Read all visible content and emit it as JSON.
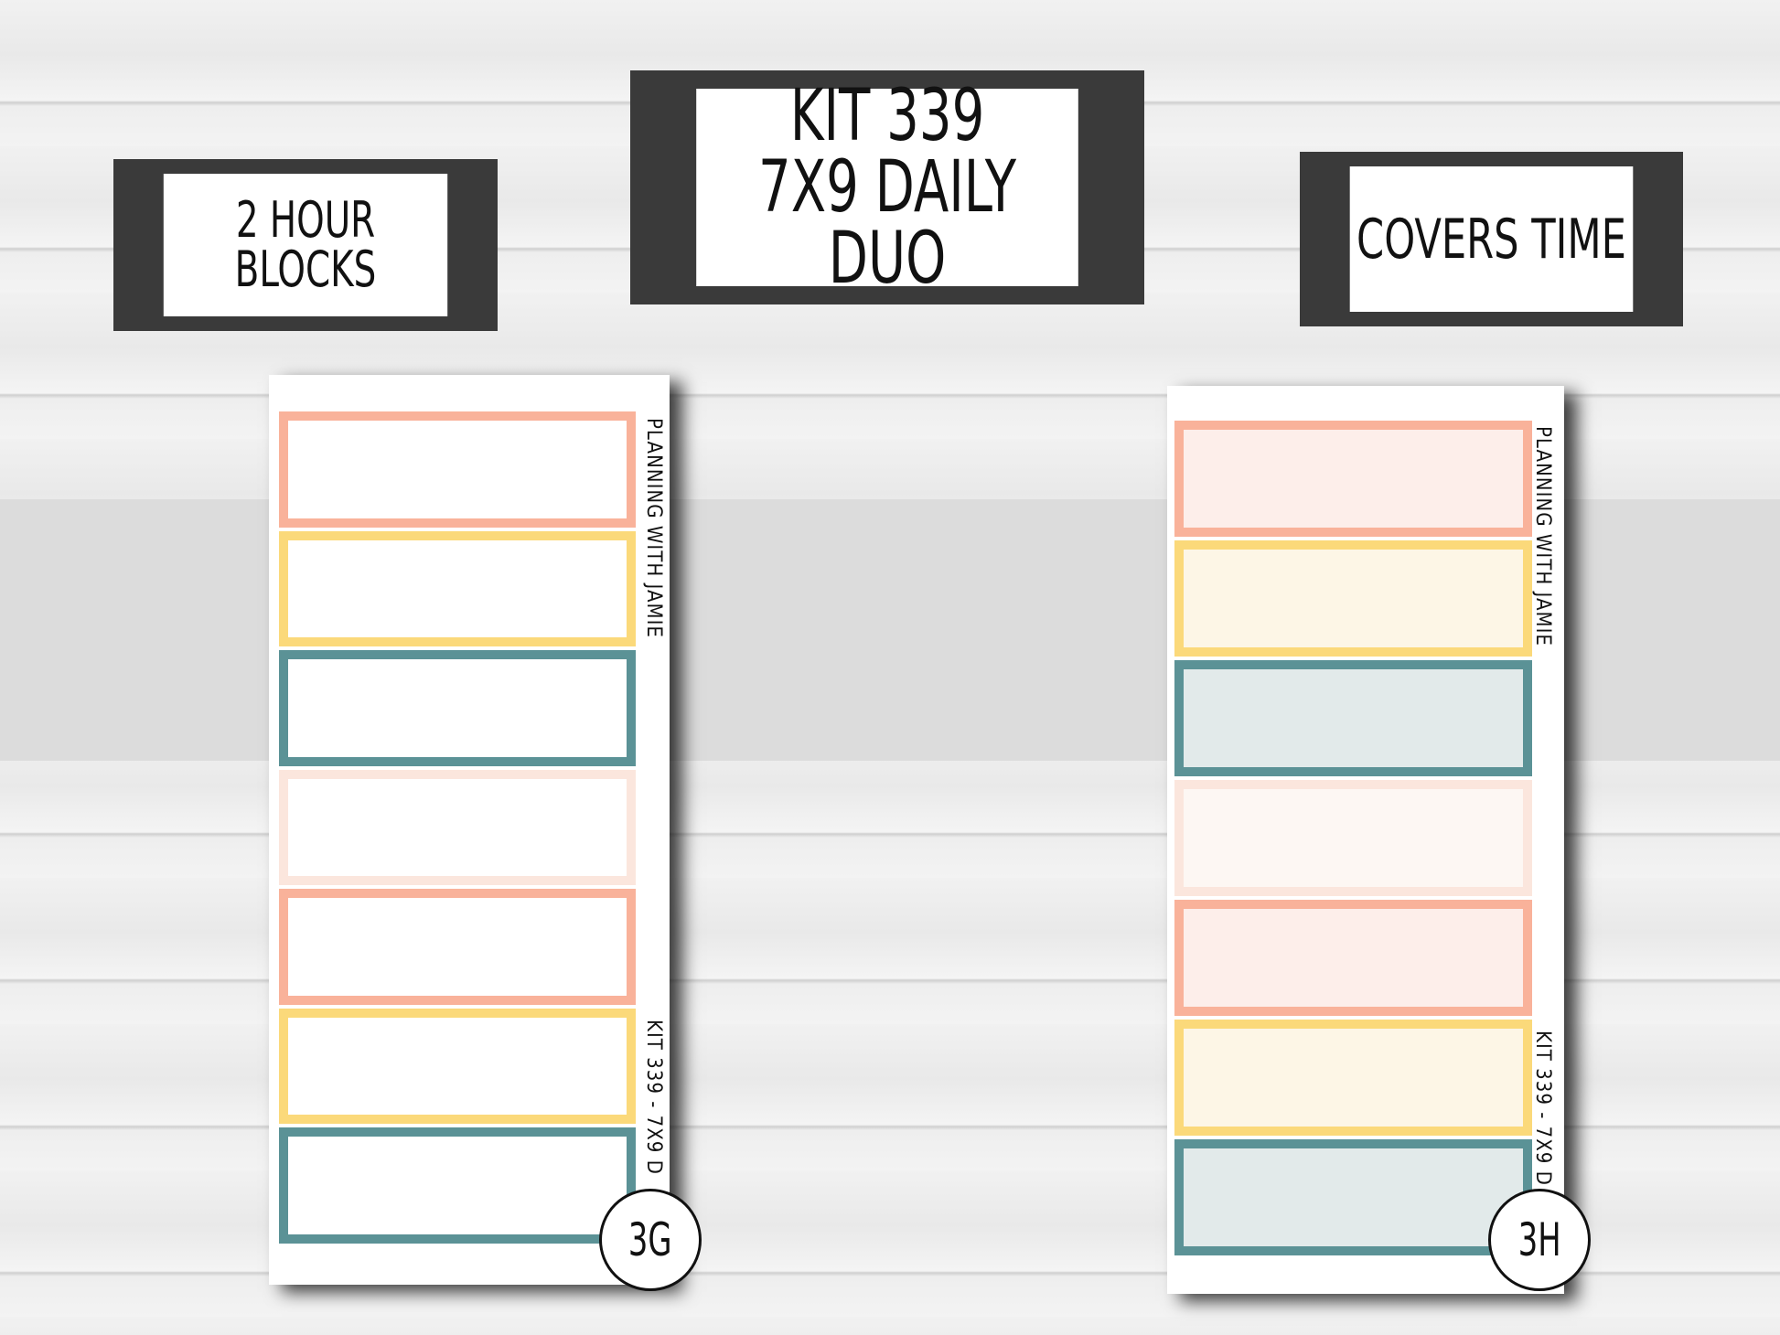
{
  "labels": {
    "left": [
      "2 HOUR",
      "BLOCKS"
    ],
    "center": [
      "KIT 339",
      "7X9 DAILY DUO"
    ],
    "right": [
      "COVERS TIME"
    ]
  },
  "sheets": [
    {
      "code": "3G",
      "brand": "PLANNING WITH JAMIE",
      "kit": "KIT 339 - 7X9 D",
      "style": "outline",
      "boxes": [
        {
          "border": "#f9b29a",
          "fill": "#ffffff"
        },
        {
          "border": "#fbd97a",
          "fill": "#ffffff"
        },
        {
          "border": "#5b9296",
          "fill": "#ffffff"
        },
        {
          "border": "#fbe6dd",
          "fill": "#ffffff"
        },
        {
          "border": "#f9b29a",
          "fill": "#ffffff"
        },
        {
          "border": "#fbd97a",
          "fill": "#ffffff"
        },
        {
          "border": "#5b9296",
          "fill": "#ffffff"
        }
      ]
    },
    {
      "code": "3H",
      "brand": "PLANNING WITH JAMIE",
      "kit": "KIT 339 - 7X9 D",
      "style": "filled",
      "boxes": [
        {
          "border": "#f9b29a",
          "fill": "#fdeeea"
        },
        {
          "border": "#fbd97a",
          "fill": "#fdf6e6"
        },
        {
          "border": "#5b9296",
          "fill": "#e2eaea"
        },
        {
          "border": "#fbe6dd",
          "fill": "#fdf7f3"
        },
        {
          "border": "#f9b29a",
          "fill": "#fdeeea"
        },
        {
          "border": "#fbd97a",
          "fill": "#fdf6e6"
        },
        {
          "border": "#5b9296",
          "fill": "#e2eaea"
        }
      ]
    }
  ]
}
